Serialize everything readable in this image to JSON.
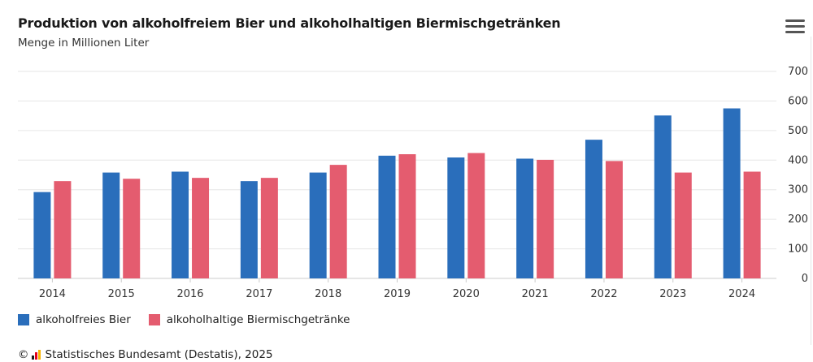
{
  "header": {
    "title": "Produktion von alkoholfreiem Bier und alkoholhaltigen Biermischgetränken",
    "subtitle": "Menge in Millionen Liter"
  },
  "menu": {
    "icon": "hamburger-menu-icon"
  },
  "footer": {
    "copyright_symbol": "©",
    "source": "Statistisches Bundesamt (Destatis), 2025"
  },
  "chart_data": {
    "type": "bar",
    "categories": [
      "2014",
      "2015",
      "2016",
      "2017",
      "2018",
      "2019",
      "2020",
      "2021",
      "2022",
      "2023",
      "2024"
    ],
    "series": [
      {
        "name": "alkoholfreies Bier",
        "color": "#2a6ebb",
        "values": [
          292,
          358,
          361,
          329,
          358,
          415,
          409,
          405,
          469,
          551,
          575
        ]
      },
      {
        "name": "alkoholhaltige Biermischgetränke",
        "color": "#e45c6f",
        "values": [
          329,
          337,
          340,
          340,
          384,
          420,
          424,
          401,
          397,
          358,
          361
        ]
      }
    ],
    "yticks": [
      0,
      100,
      200,
      300,
      400,
      500,
      600,
      700
    ],
    "ylim": [
      0,
      700
    ],
    "y_axis_side": "right",
    "grid": true,
    "legend_position": "bottom-left"
  }
}
